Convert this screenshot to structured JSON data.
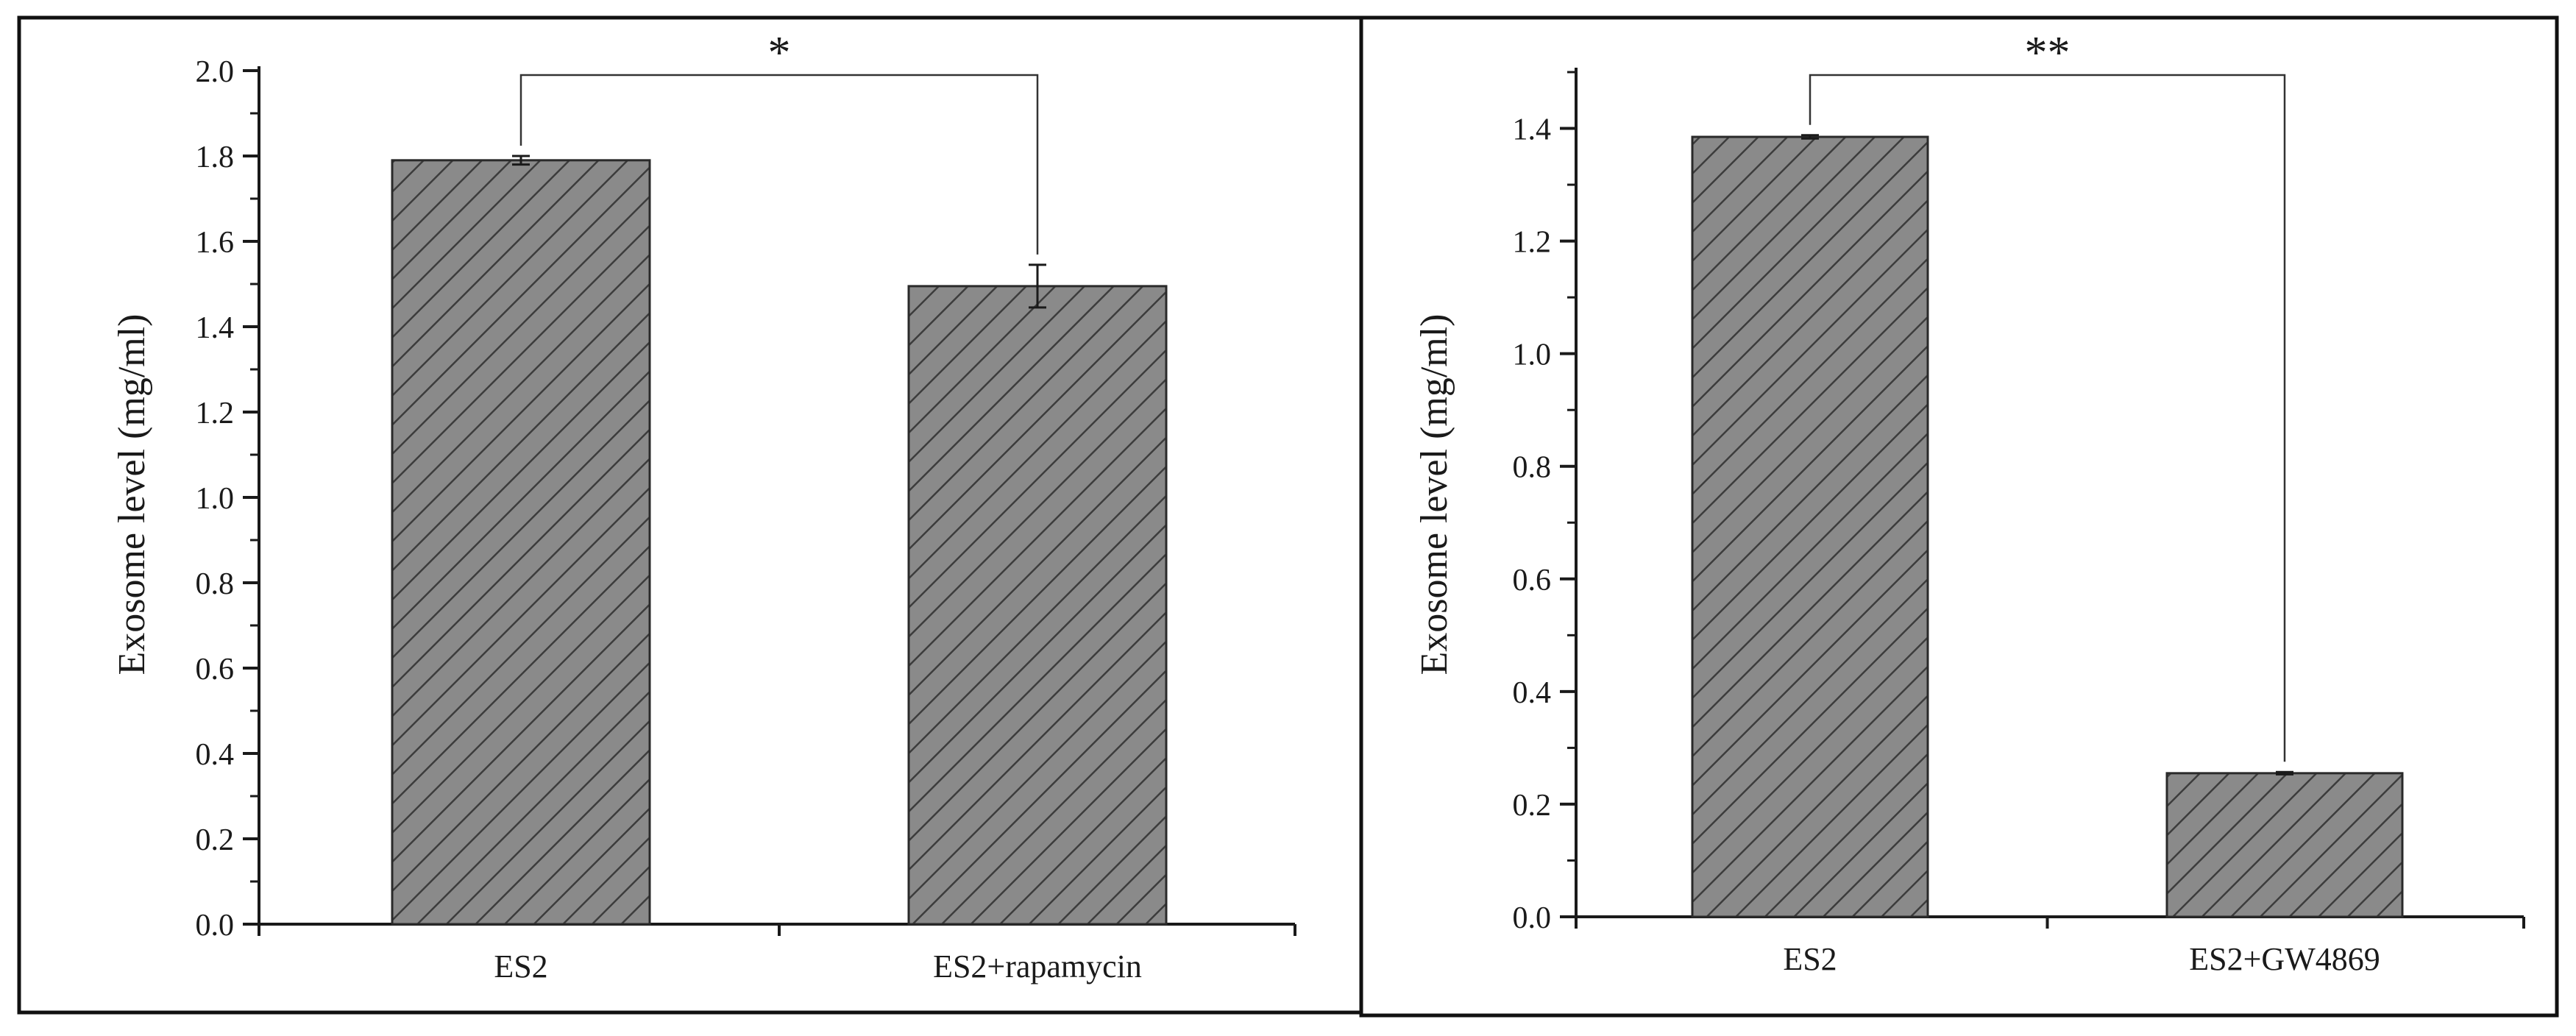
{
  "colors": {
    "bar_fill": "#8a8a8a",
    "bar_hatch": "#3c3c3c",
    "bar_stroke": "#2a2a2a",
    "axis": "#1a1a1a",
    "panel_border": "#111111",
    "background": "#ffffff"
  },
  "chart_data": [
    {
      "type": "bar",
      "ylabel": "Exosome level (mg/ml)",
      "xlabel": "",
      "categories": [
        "ES2",
        "ES2+rapamycin"
      ],
      "values": [
        1.79,
        1.495
      ],
      "errors": [
        0.01,
        0.05
      ],
      "ylim": [
        0,
        2.0
      ],
      "yticks": [
        "0.0",
        "0.2",
        "0.4",
        "0.6",
        "0.8",
        "1.0",
        "1.2",
        "1.4",
        "1.6",
        "1.8",
        "2.0"
      ],
      "significance": "*",
      "grid": false,
      "legend": "none"
    },
    {
      "type": "bar",
      "ylabel": "Exosome level (mg/ml)",
      "xlabel": "",
      "categories": [
        "ES2",
        "ES2+GW4869"
      ],
      "values": [
        1.385,
        0.255
      ],
      "errors": [
        0.003,
        0.002
      ],
      "ylim": [
        0,
        1.5
      ],
      "yticks": [
        "0.0",
        "0.2",
        "0.4",
        "0.6",
        "0.8",
        "1.0",
        "1.2",
        "1.4"
      ],
      "significance": "**",
      "grid": false,
      "legend": "none"
    }
  ]
}
